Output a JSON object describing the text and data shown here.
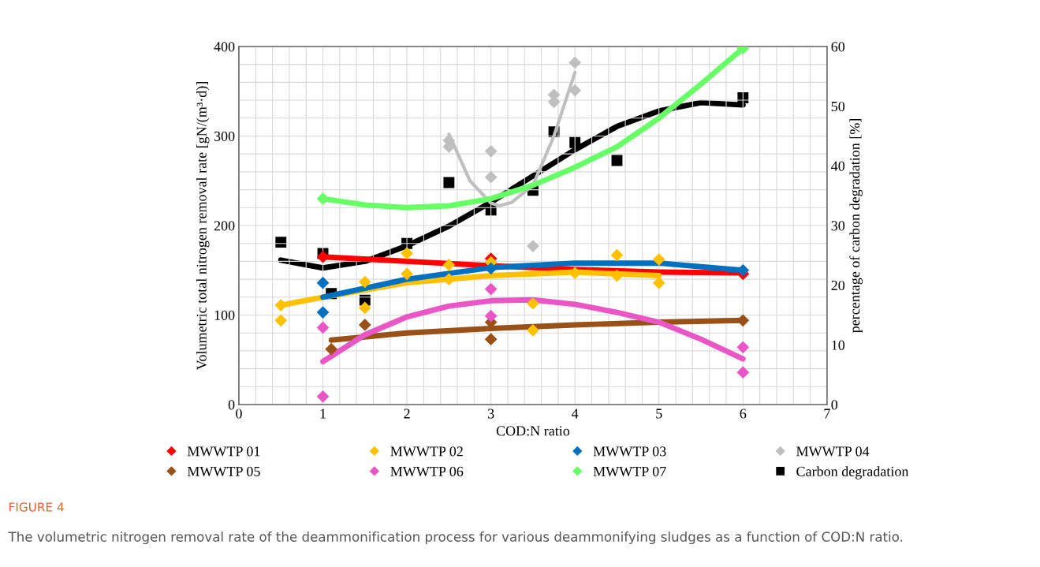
{
  "chart_data": {
    "type": "scatter",
    "xlabel": "COD:N ratio",
    "ylabel": "Volumetric total nitrogen removal rate [gN/(m³·d)]",
    "y2label": "percentage of carbon degradation [%]",
    "xlim": [
      0,
      7
    ],
    "xticks": [
      0,
      1,
      2,
      3,
      4,
      5,
      6,
      7
    ],
    "ylim": [
      0,
      400
    ],
    "yticks": [
      0,
      100,
      200,
      300,
      400
    ],
    "y2lim": [
      0,
      60
    ],
    "y2ticks": [
      0,
      10,
      20,
      30,
      40,
      50,
      60
    ],
    "grid": true,
    "legend": "bottom",
    "annotations": [
      "FIGURE 4",
      "The volumetric nitrogen removal rate of the deammonification process for various deammonifying sludges as a function of COD:N ratio."
    ],
    "series": [
      {
        "type": "line",
        "color": "#ff0000",
        "x": [
          1,
          2,
          3,
          4,
          5,
          6
        ],
        "values": [
          165,
          160,
          155,
          151,
          148,
          147
        ]
      },
      {
        "type": "line",
        "color": "#ffc000",
        "x": [
          0.5,
          1,
          2,
          3,
          4,
          5
        ],
        "values": [
          111,
          120,
          136,
          144,
          148,
          144
        ]
      },
      {
        "type": "line",
        "color": "#0070c0",
        "x": [
          1,
          2,
          3,
          4,
          5,
          6
        ],
        "values": [
          120,
          140,
          153,
          158,
          158,
          150
        ]
      },
      {
        "type": "line",
        "color": "#bfbfbf",
        "x": [
          2.5,
          2.75,
          3,
          3.1,
          3.25,
          3.5,
          3.75,
          4
        ],
        "values": [
          302,
          250,
          225,
          222,
          226,
          245,
          300,
          371
        ]
      },
      {
        "type": "line",
        "color": "#995118",
        "x": [
          1.1,
          2,
          3,
          4,
          5,
          6
        ],
        "values": [
          72,
          80,
          85,
          89,
          92,
          94
        ]
      },
      {
        "type": "line",
        "color": "#ea56c6",
        "x": [
          1,
          1.5,
          2,
          2.5,
          3,
          3.5,
          4,
          4.5,
          5,
          5.5,
          6
        ],
        "values": [
          48,
          78,
          98,
          110,
          116,
          117,
          112,
          103,
          92,
          73,
          51
        ]
      },
      {
        "type": "line",
        "color": "#66ff66",
        "x": [
          1,
          1.5,
          2,
          2.5,
          3,
          3.5,
          4,
          4.5,
          5,
          5.5,
          6
        ],
        "values": [
          230,
          223,
          220,
          222,
          230,
          245,
          265,
          288,
          320,
          358,
          398
        ]
      },
      {
        "type": "line",
        "color": "#000000",
        "axis": "y2",
        "x": [
          0.5,
          1,
          1.5,
          2,
          2.5,
          3,
          3.5,
          4,
          4.5,
          5,
          5.5,
          6
        ],
        "values": [
          24.2,
          22.9,
          24.0,
          26.6,
          29.9,
          33.9,
          38.3,
          42.7,
          46.6,
          49.2,
          50.6,
          50.2
        ]
      },
      {
        "name": "MWWTP 01",
        "color": "#ff0000",
        "marker": "diamond",
        "x": [
          1,
          3,
          6
        ],
        "values": [
          165,
          163,
          146
        ]
      },
      {
        "name": "MWWTP 02",
        "color": "#ffc000",
        "marker": "diamond",
        "x": [
          0.5,
          0.5,
          1.5,
          1.5,
          2,
          2,
          2.5,
          2.5,
          3,
          3.5,
          3.5,
          4,
          4.5,
          4.5,
          5,
          5
        ],
        "values": [
          111,
          94,
          137,
          108,
          169,
          146,
          156,
          140,
          159,
          113,
          83,
          147,
          167,
          144,
          162,
          136
        ]
      },
      {
        "name": "MWWTP 03",
        "color": "#0070c0",
        "marker": "diamond",
        "x": [
          1,
          1,
          3,
          6
        ],
        "values": [
          136,
          103,
          152,
          150
        ]
      },
      {
        "name": "MWWTP 04",
        "color": "#bfbfbf",
        "marker": "diamond",
        "x": [
          2.5,
          2.5,
          3,
          3,
          3.5,
          3.75,
          3.75,
          4,
          4
        ],
        "values": [
          295,
          288,
          283,
          254,
          177,
          346,
          338,
          382,
          351
        ]
      },
      {
        "name": "MWWTP 05",
        "color": "#995118",
        "marker": "diamond",
        "x": [
          1.1,
          1.5,
          3,
          3,
          6
        ],
        "values": [
          62,
          89,
          92,
          73,
          94
        ]
      },
      {
        "name": "MWWTP 06",
        "color": "#ea56c6",
        "marker": "diamond",
        "x": [
          1,
          1,
          3,
          3,
          6,
          6
        ],
        "values": [
          86,
          9,
          129,
          99,
          64,
          36
        ]
      },
      {
        "name": "MWWTP 07",
        "color": "#66ff66",
        "marker": "diamond",
        "x": [
          1,
          6
        ],
        "values": [
          230,
          398
        ]
      },
      {
        "name": "Carbon degradation",
        "color": "#000000",
        "marker": "square",
        "axis": "y2",
        "x": [
          0.5,
          1,
          1.1,
          1.5,
          2,
          2.5,
          3,
          3.5,
          3.75,
          4,
          4.5,
          6
        ],
        "values": [
          27.2,
          25.3,
          18.6,
          17.5,
          27.0,
          37.2,
          32.6,
          35.9,
          45.7,
          43.9,
          40.9,
          51.4
        ]
      }
    ]
  }
}
